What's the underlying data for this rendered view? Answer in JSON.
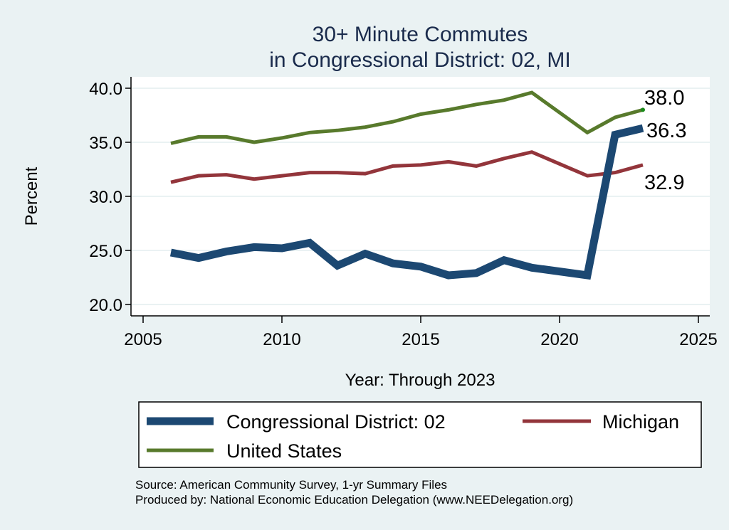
{
  "chart_data": {
    "type": "line",
    "title": "30+ Minute Commutes",
    "subtitle": "in Congressional District:  02, MI",
    "xlabel": "Year: Through 2023",
    "ylabel": "Percent",
    "xlim": [
      2005,
      2025
    ],
    "ylim": [
      20,
      40
    ],
    "xticks": [
      "2005",
      "2010",
      "2015",
      "2020",
      "2025"
    ],
    "yticks": [
      "20.0",
      "25.0",
      "30.0",
      "35.0",
      "40.0"
    ],
    "grid": true,
    "legend_position": "bottom",
    "x": [
      2006,
      2007,
      2008,
      2009,
      2010,
      2011,
      2012,
      2013,
      2014,
      2015,
      2016,
      2017,
      2018,
      2019,
      2021,
      2022,
      2023
    ],
    "series": [
      {
        "name": "Congressional District:  02",
        "color": "#1c4872",
        "values": [
          24.8,
          24.3,
          24.9,
          25.3,
          25.2,
          25.7,
          23.6,
          24.7,
          23.8,
          23.5,
          22.7,
          22.9,
          24.1,
          23.4,
          22.7,
          35.7,
          36.3
        ],
        "end_label": "36.3"
      },
      {
        "name": "Michigan",
        "color": "#93353b",
        "values": [
          31.3,
          31.9,
          32.0,
          31.6,
          31.9,
          32.2,
          32.2,
          32.1,
          32.8,
          32.9,
          33.2,
          32.8,
          33.5,
          34.1,
          31.9,
          32.2,
          32.9
        ],
        "end_label": "32.9"
      },
      {
        "name": "United States",
        "color": "#587a2c",
        "values": [
          34.9,
          35.5,
          35.5,
          35.0,
          35.4,
          35.9,
          36.1,
          36.4,
          36.9,
          37.6,
          38.0,
          38.5,
          38.9,
          39.6,
          35.9,
          37.3,
          38.0
        ],
        "end_label": "38.0"
      }
    ],
    "notes": [
      "Source: American Community Survey, 1-yr Summary Files",
      "Produced by: National Economic Education Delegation (www.NEEDelegation.org)"
    ]
  }
}
